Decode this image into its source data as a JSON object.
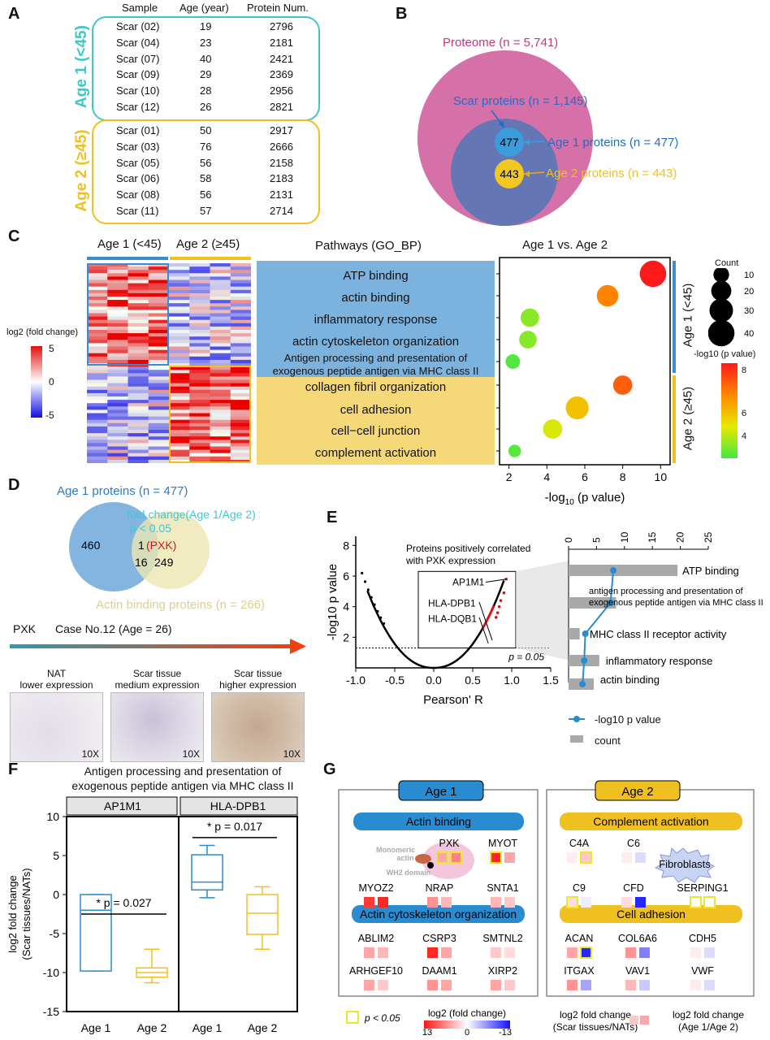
{
  "panel_labels": {
    "a": "A",
    "b": "B",
    "c": "C",
    "d": "D",
    "e": "E",
    "f": "F",
    "g": "G"
  },
  "panel_a": {
    "headers": [
      "Sample",
      "Age (year)",
      "Protein Num."
    ],
    "group1_label": "Age 1 (<45)",
    "group2_label": "Age 2 (≥45)",
    "colors": {
      "group1": "#3cc8c8",
      "group2": "#f0c020"
    },
    "group1_rows": [
      [
        "Scar (02)",
        "19",
        "2796"
      ],
      [
        "Scar (04)",
        "23",
        "2181"
      ],
      [
        "Scar (07)",
        "40",
        "2421"
      ],
      [
        "Scar (09)",
        "29",
        "2369"
      ],
      [
        "Scar (10)",
        "28",
        "2956"
      ],
      [
        "Scar (12)",
        "26",
        "2821"
      ]
    ],
    "group2_rows": [
      [
        "Scar (01)",
        "50",
        "2917"
      ],
      [
        "Scar (03)",
        "76",
        "2666"
      ],
      [
        "Scar (05)",
        "56",
        "2158"
      ],
      [
        "Scar (06)",
        "58",
        "2183"
      ],
      [
        "Scar (08)",
        "56",
        "2131"
      ],
      [
        "Scar (11)",
        "57",
        "2714"
      ]
    ]
  },
  "panel_b": {
    "proteome_label": "Proteome (n = 5,741)",
    "scar_label": "Scar proteins (n = 1,145)",
    "age1_label": "Age 1 proteins (n = 477)",
    "age2_label": "Age 2 proteins  (n = 443)",
    "age1_count": "477",
    "age2_count": "443",
    "colors": {
      "proteome": "#d670a8",
      "scar": "#6476b4",
      "age1": "#3c9cdc",
      "age2": "#f0c820"
    }
  },
  "panel_c": {
    "heat_col1": "Age 1 (<45)",
    "heat_col2": "Age 2 (≥45)",
    "legend_title": "log2 (fold change)",
    "legend_ticks": [
      "5",
      "0",
      "-5"
    ],
    "pathways_title": "Pathways (GO_BP)",
    "pathways": [
      "ATP binding",
      "actin binding",
      "inflammatory response",
      "actin cytoskeleton organization",
      "Antigen processing and presentation of",
      "exogenous peptide antigen via MHC class II",
      "collagen fibril organization",
      "cell adhesion",
      "cell−cell junction",
      "complement activation"
    ],
    "dot_title": "Age 1 vs. Age 2",
    "side_label1": "Age 1 (<45)",
    "side_label2": "Age 2 (≥45)",
    "count_title": "Count",
    "count_ticks": [
      "10",
      "20",
      "30",
      "40"
    ],
    "pval_title": "-log10 (p value)",
    "pval_ticks": [
      "8",
      "6",
      "4"
    ],
    "x_ticks": [
      "2",
      "4",
      "6",
      "8",
      "10"
    ],
    "x_label": "-log10 (p value)"
  },
  "panel_d": {
    "age1_label": "Age 1 proteins (n = 477)",
    "actin_label": "Actin binding proteins (n = 266)",
    "fold_label": "fold change(Age 1/Age 2) > 2",
    "p_label": "p < 0.05",
    "n460": "460",
    "n1": "1",
    "pxk": "(PXK)",
    "n16": "16",
    "n249": "249",
    "gene": "PXK",
    "case": "Case No.12 (Age = 26)",
    "thumbs": [
      {
        "title": "NAT",
        "sub": "lower expression",
        "zoom": "10X"
      },
      {
        "title": "Scar tissue",
        "sub": "medium expression",
        "zoom": "10X"
      },
      {
        "title": "Scar tissue",
        "sub": "higher expression",
        "zoom": "10X"
      }
    ]
  },
  "panel_e": {
    "ylabel": "-log10 p value",
    "xlabel": "Pearson' R",
    "x_ticks": [
      "-1.0",
      "-0.5",
      "0.0",
      "0.5",
      "1.0",
      "1.5"
    ],
    "y_ticks": [
      "2",
      "4",
      "6",
      "8"
    ],
    "box_title1": "Proteins positively correlated",
    "box_title2": "with PXK expression",
    "genes": [
      "AP1M1",
      "HLA-DPB1",
      "HLA-DQB1"
    ],
    "p_line": "p = 0.05",
    "bar_ticks": [
      "0",
      "5",
      "10",
      "15",
      "20",
      "25"
    ],
    "bar_labels": [
      "ATP binding",
      "antigen processing and presentation of",
      "exogenous peptide antigen via MHC class II",
      "MHC class II receptor activity",
      "inflammatory response",
      "actin binding"
    ],
    "legend_line": "-log10 p value",
    "legend_bar": "count"
  },
  "panel_f": {
    "title1": "Antigen processing and presentation of",
    "title2": "exogenous peptide antigen via MHC class II",
    "facet1": "AP1M1",
    "facet2": "HLA-DPB1",
    "ylabel1": "log2 fold change",
    "ylabel2": "(Scar tissues/NATs)",
    "y_ticks": [
      "10",
      "5",
      "0",
      "-5",
      "-10",
      "-15"
    ],
    "x_labels": [
      "Age 1",
      "Age 2",
      "Age 1",
      "Age 2"
    ],
    "sig1": "* p = 0.027",
    "sig2": "* p = 0.017"
  },
  "panel_g": {
    "age1": "Age 1",
    "age2": "Age 2",
    "actin_binding": "Actin binding",
    "actin_cyto": "Actin cytoskeleton organization",
    "complement": "Complement activation",
    "cell_adhesion": "Cell adhesion",
    "monomeric": "Monomeric",
    "actin": "actin",
    "wh2": "WH2 domain",
    "fibroblasts": "Fibroblasts",
    "genes_ab": [
      "PXK",
      "MYOT",
      "MYOZ2",
      "NRAP",
      "SNTA1"
    ],
    "genes_aco": [
      "ABLIM2",
      "CSRP3",
      "SMTNL2",
      "ARHGEF10",
      "DAAM1",
      "XIRP2"
    ],
    "genes_ca": [
      "C4A",
      "C6",
      "C9",
      "CFD",
      "SERPING1"
    ],
    "genes_cad": [
      "ACAN",
      "COL6A6",
      "CDH5",
      "ITGAX",
      "VAV1",
      "VWF"
    ],
    "legend_p": "p < 0.05",
    "legend_title": "log2 (fold change)",
    "legend_ticks": [
      "13",
      "0",
      "-13"
    ],
    "key_left1": "log2 fold change",
    "key_left2": "(Scar tissues/NATs)",
    "key_right1": "log2 fold change",
    "key_right2": "(Age 1/Age 2)"
  },
  "chart_data": [
    {
      "type": "scatter",
      "title": "Age 1 vs. Age 2",
      "xlabel": "-log10 (p value)",
      "ylabel": "Pathways (GO_BP)",
      "xlim": [
        1.5,
        10.5
      ],
      "categories": [
        "ATP binding",
        "actin binding",
        "inflammatory response",
        "actin cytoskeleton organization",
        "Antigen processing and presentation of exogenous peptide antigen via MHC class II",
        "collagen fibril organization",
        "cell adhesion",
        "cell−cell junction",
        "complement activation"
      ],
      "x": [
        9.6,
        7.2,
        3.1,
        3.0,
        2.2,
        8.0,
        5.6,
        4.3,
        2.3
      ],
      "count": [
        40,
        24,
        16,
        14,
        8,
        18,
        28,
        18,
        5
      ]
    },
    {
      "type": "bar",
      "title": "PXK-correlated pathways",
      "categories": [
        "ATP binding",
        "antigen processing and presentation of exogenous peptide antigen via MHC class II",
        "MHC class II receptor activity",
        "inflammatory response",
        "actin binding"
      ],
      "values": [
        19.5,
        8.5,
        2.0,
        5.5,
        4.5
      ],
      "series_line": {
        "name": "-log10 p value",
        "values": [
          8.0,
          7.5,
          3.0,
          2.8,
          2.5
        ]
      },
      "xlim": [
        0,
        25
      ]
    },
    {
      "type": "box",
      "title": "Antigen processing and presentation of exogenous peptide antigen via MHC class II",
      "ylabel": "log2 fold change (Scar tissues/NATs)",
      "ylim": [
        -15,
        10
      ],
      "series": [
        {
          "name": "AP1M1 Age 1",
          "min": -9.8,
          "q1": -9.8,
          "median": -2.0,
          "q3": 0,
          "max": 0
        },
        {
          "name": "AP1M1 Age 2",
          "min": -11.3,
          "q1": -10.6,
          "median": -10,
          "q3": -9.4,
          "max": -7.0
        },
        {
          "name": "HLA-DPB1 Age 1",
          "min": -0.4,
          "q1": 0.6,
          "median": 1.6,
          "q3": 5.1,
          "max": 6.3
        },
        {
          "name": "HLA-DPB1 Age 2",
          "min": -7.0,
          "q1": -5.1,
          "median": -2.4,
          "q3": 0,
          "max": 1.0
        }
      ]
    }
  ]
}
